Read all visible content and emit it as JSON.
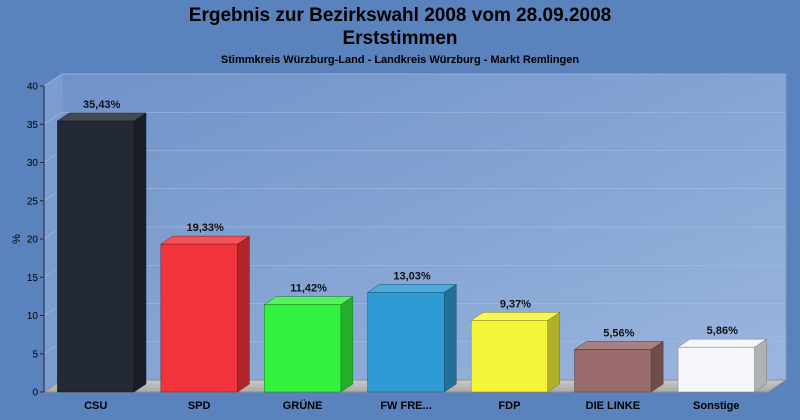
{
  "chart_data": {
    "type": "bar",
    "title": "Ergebnis zur Bezirkswahl 2008 vom 28.09.2008",
    "title_line2": "Erststimmen",
    "subtitle": "Stimmkreis Würzburg-Land - Landkreis Würzburg - Markt Remlingen",
    "ylabel": "%",
    "ylim": [
      0,
      40
    ],
    "yticks": [
      0,
      5,
      10,
      15,
      20,
      25,
      30,
      35,
      40
    ],
    "grid": true,
    "categories": [
      "CSU",
      "SPD",
      "GRÜNE",
      "FW FRE...",
      "FDP",
      "DIE LINKE",
      "Sonstige"
    ],
    "values": [
      35.43,
      19.33,
      11.42,
      13.03,
      9.37,
      5.56,
      5.86
    ],
    "value_labels": [
      "35,43%",
      "19,33%",
      "11,42%",
      "13,03%",
      "9,37%",
      "5,56%",
      "5,86%"
    ],
    "colors": [
      "#232a36",
      "#f2343c",
      "#33f23d",
      "#2f9bd5",
      "#f4f43a",
      "#9a6b6b",
      "#f4f6fb"
    ]
  },
  "background_color": "#5a82bd",
  "plot_color": "#8aa9d9"
}
